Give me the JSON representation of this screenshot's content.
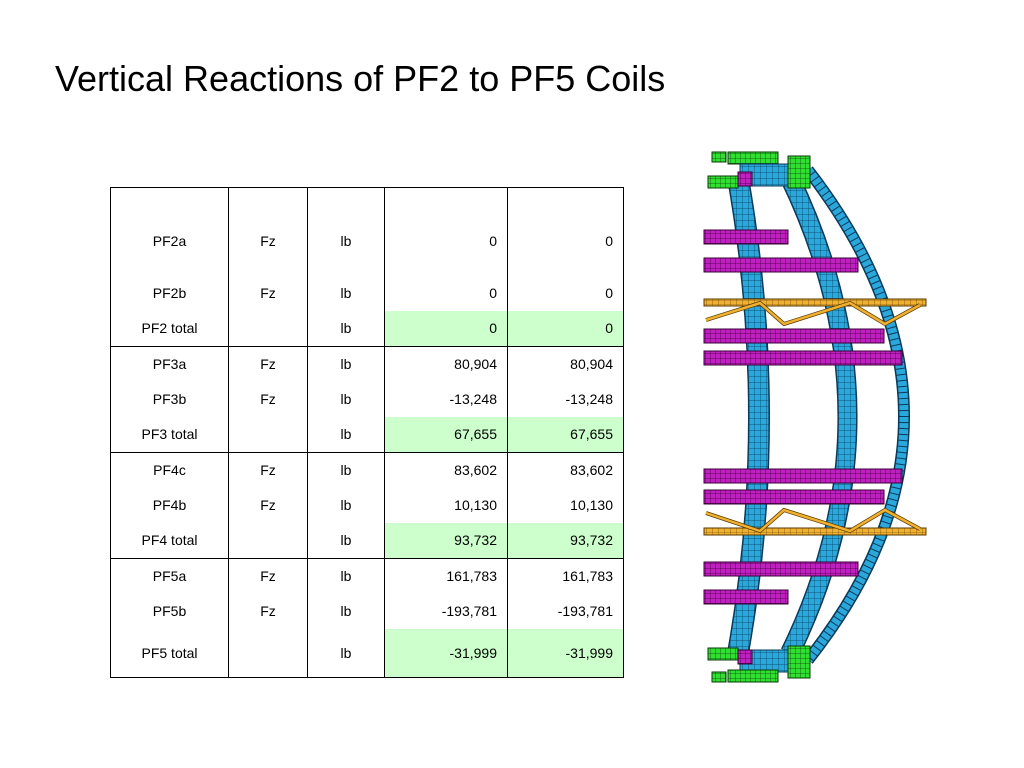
{
  "title": "Vertical Reactions of PF2 to PF5 Coils",
  "table": {
    "rows": [
      {
        "name": "PF2a",
        "component": "Fz",
        "unit": "lb",
        "value1": "0",
        "value2": "0",
        "total": false
      },
      {
        "name": "PF2b",
        "component": "Fz",
        "unit": "lb",
        "value1": "0",
        "value2": "0",
        "total": false
      },
      {
        "name": "PF2 total",
        "component": "",
        "unit": "lb",
        "value1": "0",
        "value2": "0",
        "total": true
      },
      {
        "name": "PF3a",
        "component": "Fz",
        "unit": "lb",
        "value1": "80,904",
        "value2": "80,904",
        "total": false
      },
      {
        "name": "PF3b",
        "component": "Fz",
        "unit": "lb",
        "value1": "-13,248",
        "value2": "-13,248",
        "total": false
      },
      {
        "name": "PF3 total",
        "component": "",
        "unit": "lb",
        "value1": "67,655",
        "value2": "67,655",
        "total": true
      },
      {
        "name": "PF4c",
        "component": "Fz",
        "unit": "lb",
        "value1": "83,602",
        "value2": "83,602",
        "total": false
      },
      {
        "name": "PF4b",
        "component": "Fz",
        "unit": "lb",
        "value1": "10,130",
        "value2": "10,130",
        "total": false
      },
      {
        "name": "PF4 total",
        "component": "",
        "unit": "lb",
        "value1": "93,732",
        "value2": "93,732",
        "total": true
      },
      {
        "name": "PF5a",
        "component": "Fz",
        "unit": "lb",
        "value1": "161,783",
        "value2": "161,783",
        "total": false
      },
      {
        "name": "PF5b",
        "component": "Fz",
        "unit": "lb",
        "value1": "-193,781",
        "value2": "-193,781",
        "total": false
      },
      {
        "name": "PF5 total",
        "component": "",
        "unit": "lb",
        "value1": "-31,999",
        "value2": "-31,999",
        "total": true
      }
    ]
  },
  "colors": {
    "total_fill": "#ccffcc",
    "shell": "#2aa8dc",
    "coil": "#c020c0",
    "strut": "#f0b030",
    "end_block": "#30e030"
  }
}
